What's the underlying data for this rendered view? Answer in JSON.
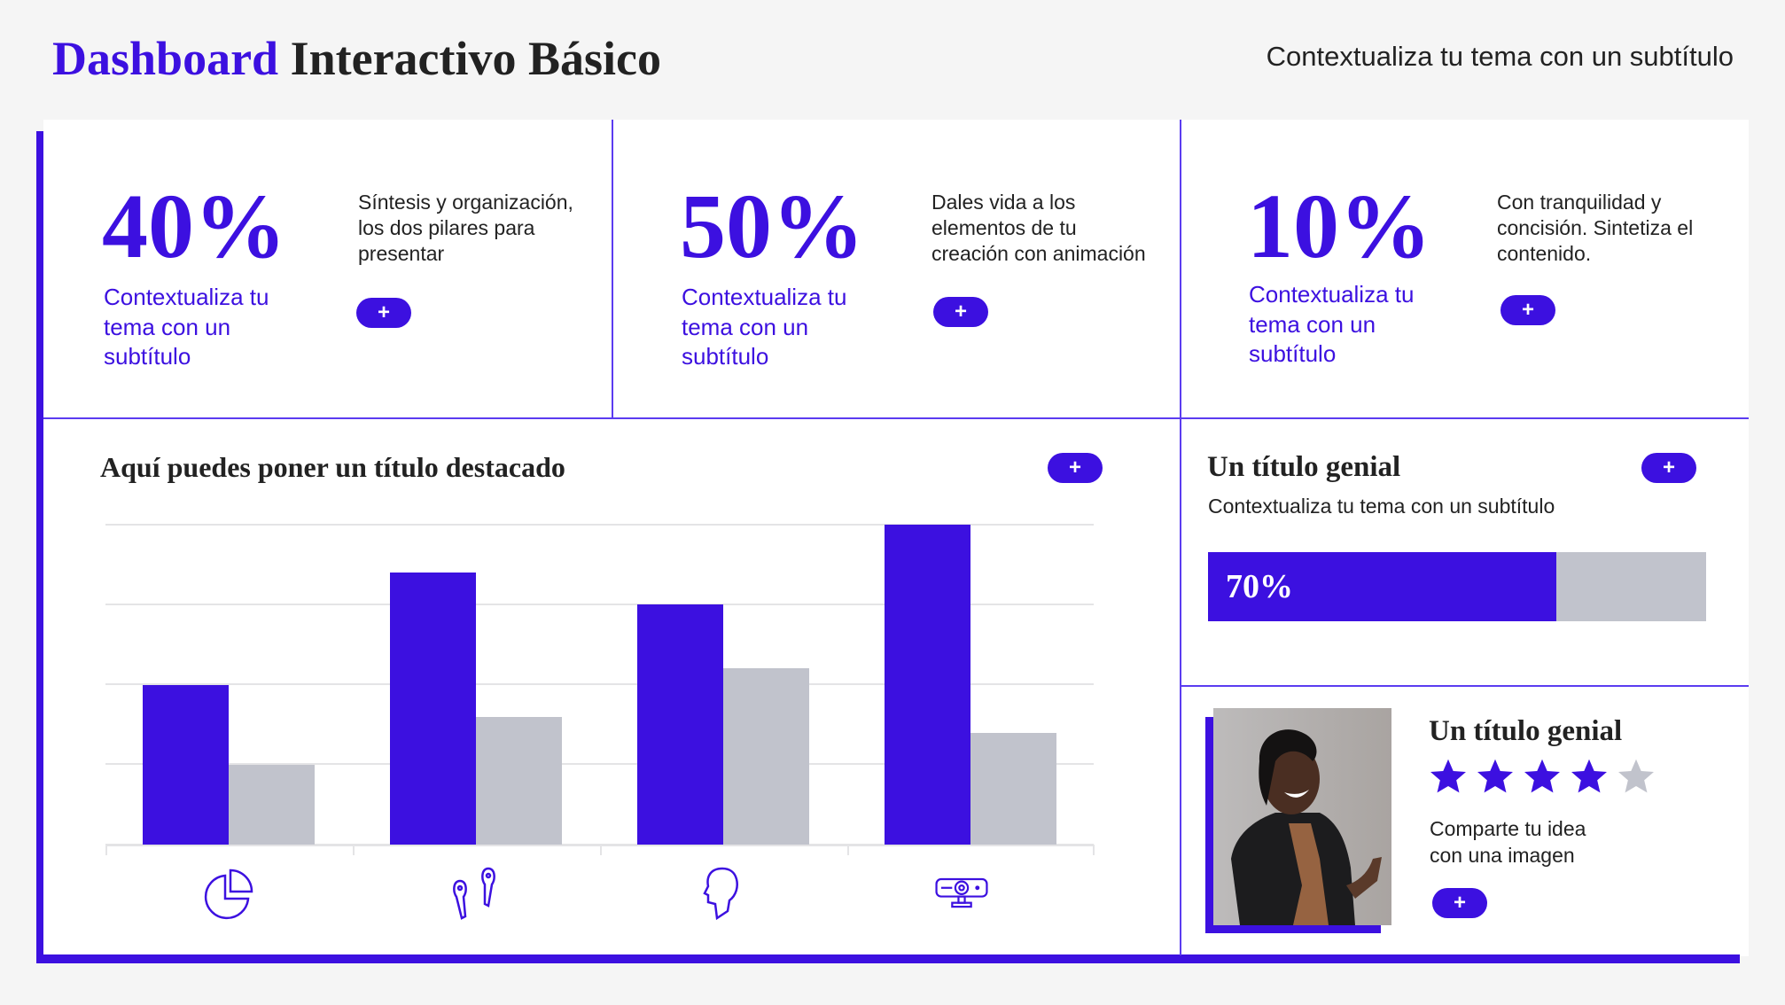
{
  "header": {
    "title_accent": "Dashboard",
    "title_rest": "Interactivo Básico",
    "subtitle": "Contextualiza tu tema con un subtítulo"
  },
  "kpis": [
    {
      "value": "40%",
      "subtitle": "Contextualiza tu tema con un subtítulo",
      "description": "Síntesis y organización, los dos pilares para presentar",
      "button": "+"
    },
    {
      "value": "50%",
      "subtitle": "Contextualiza tu tema con un subtítulo",
      "description": "Dales vida a los elementos de tu creación con animación",
      "button": "+"
    },
    {
      "value": "10%",
      "subtitle": "Contextualiza tu tema con un subtítulo",
      "description": "Con tranquilidad y concisión. Sintetiza el contenido.",
      "button": "+"
    }
  ],
  "chart_panel": {
    "title": "Aquí puedes poner un título destacado",
    "button": "+"
  },
  "chart_data": {
    "type": "bar",
    "categories_icons": [
      "pie-chart-icon",
      "earbuds-icon",
      "head-profile-icon",
      "projector-icon"
    ],
    "series": [
      {
        "color": "#3c10e0",
        "values": [
          2.0,
          3.4,
          3.0,
          4.0
        ]
      },
      {
        "color": "#c1c3cc",
        "values": [
          1.0,
          1.6,
          2.2,
          1.4
        ]
      }
    ],
    "ylim": [
      0,
      4
    ],
    "grid": true,
    "xlabel": "",
    "ylabel": ""
  },
  "progress_panel": {
    "title": "Un título genial",
    "subtitle": "Contextualiza tu tema con un subtítulo",
    "progress": 70,
    "progress_label": "70%",
    "button": "+"
  },
  "image_panel": {
    "title": "Un título genial",
    "rating": 4,
    "rating_max": 5,
    "text_line1": "Comparte tu idea",
    "text_line2": "con una imagen",
    "button": "+"
  },
  "colors": {
    "accent": "#3c10e0",
    "muted": "#c1c3cc",
    "divider": "#5b3cf0",
    "background": "#f5f5f5"
  }
}
